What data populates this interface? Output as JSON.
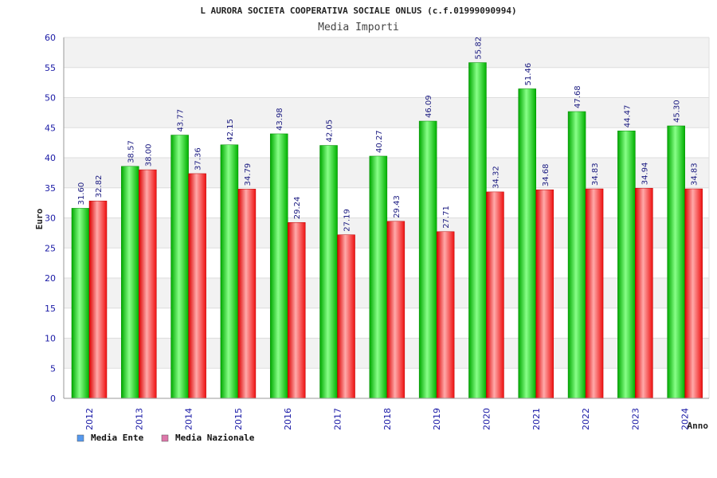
{
  "chart_data": {
    "type": "bar",
    "title": "L AURORA SOCIETA COOPERATIVA SOCIALE ONLUS (c.f.01999090994)",
    "subtitle": "Media Importi",
    "ylabel": "Euro",
    "xlabel": "Anno",
    "ylim": [
      0,
      60
    ],
    "yticks": [
      0,
      5,
      10,
      15,
      20,
      25,
      30,
      35,
      40,
      45,
      50,
      55,
      60
    ],
    "ytick_labels": [
      "0",
      "5",
      "10",
      "15",
      "20",
      "25",
      "30",
      "35",
      "40",
      "45",
      "50",
      "55",
      "60"
    ],
    "grid": true,
    "legend_position": "bottom-left",
    "categories": [
      "2012",
      "2013",
      "2014",
      "2015",
      "2016",
      "2017",
      "2018",
      "2019",
      "2020",
      "2021",
      "2022",
      "2023",
      "2024"
    ],
    "series": [
      {
        "name": "Media Ente",
        "color": "#00cc00",
        "legend_color": "#5599ee",
        "values": [
          31.6,
          38.57,
          43.77,
          42.15,
          43.98,
          42.05,
          40.27,
          46.09,
          55.82,
          51.46,
          47.68,
          44.47,
          45.3
        ],
        "labels": [
          "31.60",
          "38.57",
          "43.77",
          "42.15",
          "43.98",
          "42.05",
          "40.27",
          "46.09",
          "55.82",
          "51.46",
          "47.68",
          "44.47",
          "45.30"
        ]
      },
      {
        "name": "Media Nazionale",
        "color": "#ee1111",
        "legend_color": "#dd77aa",
        "values": [
          32.82,
          38.0,
          37.36,
          34.79,
          29.24,
          27.19,
          29.43,
          27.71,
          34.32,
          34.68,
          34.83,
          34.94,
          34.83
        ],
        "labels": [
          "32.82",
          "38.00",
          "37.36",
          "34.79",
          "29.24",
          "27.19",
          "29.43",
          "27.71",
          "34.32",
          "34.68",
          "34.83",
          "34.94",
          "34.83"
        ]
      }
    ]
  }
}
